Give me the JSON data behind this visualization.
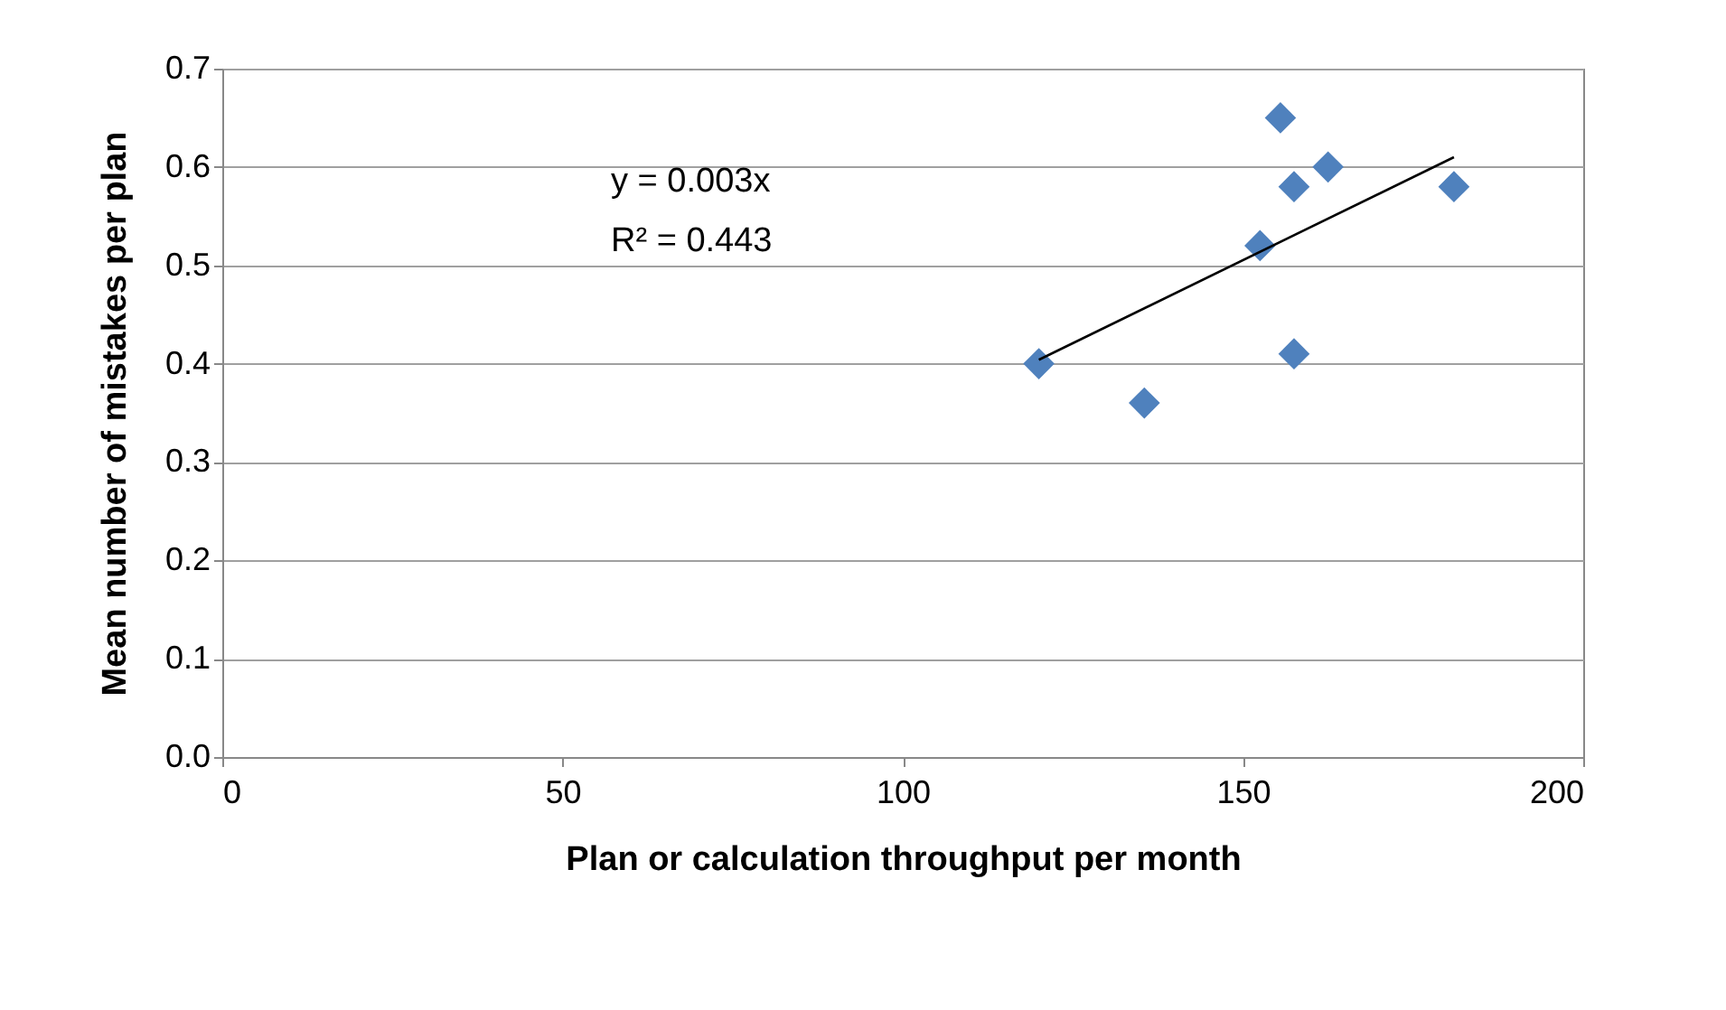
{
  "chart_data": {
    "type": "scatter",
    "xlabel": "Plan or calculation throughput per month",
    "ylabel": "Mean number of mistakes per plan",
    "x": [
      120,
      135.5,
      152.5,
      155.5,
      157.5,
      157.5,
      162.5,
      181
    ],
    "series": [
      {
        "color": "#4f81bd",
        "marker": "diamond",
        "values": [
          0.4,
          0.36,
          0.52,
          0.65,
          0.58,
          0.41,
          0.6,
          0.58
        ]
      },
      {
        "type": "line",
        "color": "#000000",
        "x": [
          120,
          181
        ],
        "values": [
          0.404,
          0.61
        ]
      }
    ],
    "annotations": [
      "y = 0.003x",
      "R² = 0.443"
    ],
    "xlim": [
      0,
      200
    ],
    "xticks": [
      0,
      50,
      100,
      150,
      200
    ],
    "ylim": [
      0,
      0.7
    ],
    "yticks": [
      {
        "value": 0,
        "label": "0.0"
      },
      {
        "value": 0.1,
        "label": "0.1"
      },
      {
        "value": 0.2,
        "label": "0.2"
      },
      {
        "value": 0.3,
        "label": "0.3"
      },
      {
        "value": 0.4,
        "label": "0.4"
      },
      {
        "value": 0.5,
        "label": "0.5"
      },
      {
        "value": 0.6,
        "label": "0.6"
      },
      {
        "value": 0.7,
        "label": "0.7"
      }
    ],
    "grid": "y"
  }
}
